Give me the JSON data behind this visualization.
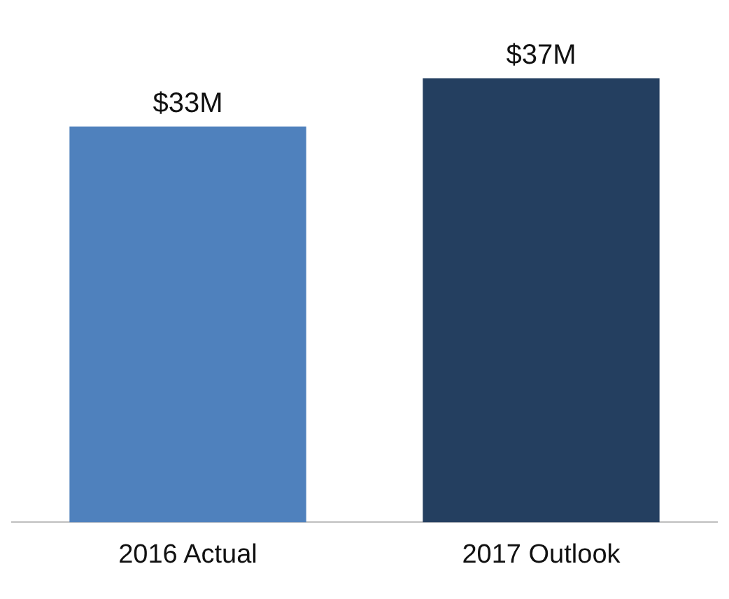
{
  "chart_data": {
    "type": "bar",
    "categories": [
      "2016 Actual",
      "2017 Outlook"
    ],
    "values": [
      33,
      37
    ],
    "colors": [
      "#4f81bd",
      "#243f60"
    ],
    "value_labels": [
      "$33M",
      "$37M"
    ],
    "grid": false,
    "legend": false
  }
}
